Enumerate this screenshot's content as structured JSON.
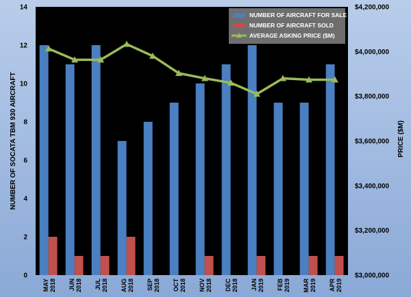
{
  "chart_data": {
    "type": "bar",
    "categories": [
      [
        "MAY",
        "2018"
      ],
      [
        "JUN",
        "2018"
      ],
      [
        "JUL",
        "2018"
      ],
      [
        "AUG",
        "2018"
      ],
      [
        "SEP",
        "2018"
      ],
      [
        "OCT",
        "2018"
      ],
      [
        "NOV",
        "2018"
      ],
      [
        "DEC",
        "2018"
      ],
      [
        "JAN",
        "2019"
      ],
      [
        "FEB",
        "2019"
      ],
      [
        "MAR",
        "2019"
      ],
      [
        "APR",
        "2019"
      ]
    ],
    "series": [
      {
        "name": "NUMBER OF AIRCRAFT FOR SALE",
        "type": "bar",
        "axis": "left",
        "color": "#4a7fc1",
        "values": [
          12,
          11,
          12,
          7,
          8,
          9,
          10,
          11,
          12,
          9,
          9,
          11
        ]
      },
      {
        "name": "NUMBER OF AIRCRAFT SOLD",
        "type": "bar",
        "axis": "left",
        "color": "#c0504d",
        "values": [
          2,
          1,
          1,
          2,
          0,
          0,
          1,
          0,
          1,
          0,
          1,
          1
        ]
      },
      {
        "name": "AVERAGE ASKING PRICE ($M)",
        "type": "line",
        "axis": "right",
        "color": "#9bbb59",
        "values": [
          4013000,
          3963000,
          3963000,
          4033000,
          3980000,
          3903000,
          3880000,
          3860000,
          3810000,
          3880000,
          3874000,
          3874000
        ]
      }
    ],
    "y_left": {
      "label": "NUMBER OF SOCATA TBM 930 AIRCRAFT",
      "min": 0,
      "max": 14,
      "ticks": [
        "0",
        "2",
        "4",
        "6",
        "8",
        "10",
        "12",
        "14"
      ],
      "tick_values": [
        0,
        2,
        4,
        6,
        8,
        10,
        12,
        14
      ]
    },
    "y_right": {
      "label": "PRICE ($M)",
      "min": 3000000,
      "max": 4200000,
      "ticks": [
        "$3,000,000",
        "$3,200,000",
        "$3,400,000",
        "$3,600,000",
        "$3,800,000",
        "$4,000,000",
        "$4,200,000"
      ],
      "tick_values": [
        3000000,
        3200000,
        3400000,
        3600000,
        3800000,
        4000000,
        4200000
      ]
    },
    "grid": false,
    "legend_position": "top-right",
    "plot_background": "#000000"
  }
}
